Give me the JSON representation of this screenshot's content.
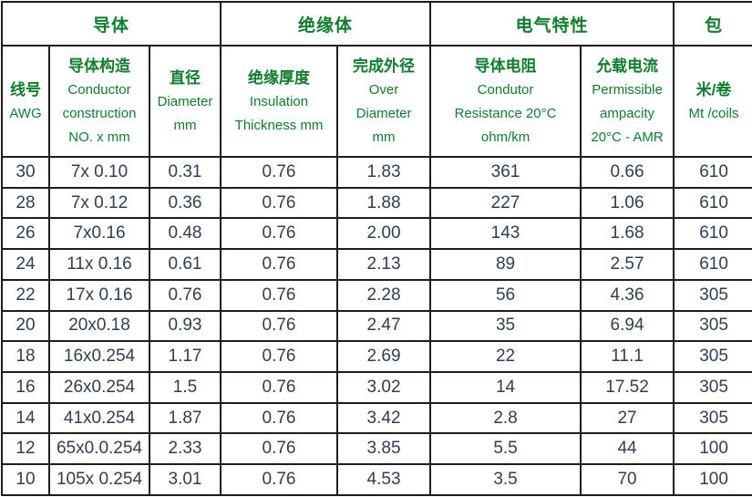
{
  "table": {
    "colors": {
      "header_text": "#0e7e2d",
      "body_text": "#2f3e52",
      "border": "#1d1d1d",
      "background": "#ffffff"
    },
    "group_header": [
      {
        "label": "导体",
        "span": 3
      },
      {
        "label": "绝缘体",
        "span": 2
      },
      {
        "label": "电气特性",
        "span": 2
      },
      {
        "label": "包",
        "span": 1
      }
    ],
    "columns": [
      {
        "key": "awg",
        "cn": "线号",
        "en": [
          "AWG"
        ],
        "width": 52
      },
      {
        "key": "conductor-construction",
        "cn": "导体构造",
        "en": [
          "Conductor",
          "construction",
          "NO. x mm"
        ],
        "width": 110
      },
      {
        "key": "diameter",
        "cn": "直径",
        "en": [
          "Diameter",
          "mm"
        ],
        "width": 78
      },
      {
        "key": "insulation-thickness",
        "cn": "绝缘厚度",
        "en": [
          "Insulation",
          "Thickness mm"
        ],
        "width": 128
      },
      {
        "key": "over-diameter",
        "cn": "完成外径",
        "en": [
          "Over",
          "Diameter",
          "mm"
        ],
        "width": 102
      },
      {
        "key": "conductor-resistance",
        "cn": "导体电阻",
        "en": [
          "Condutor",
          "Resistance 20°C",
          "ohm/km"
        ],
        "width": 165
      },
      {
        "key": "permissible-ampacity",
        "cn": "允载电流",
        "en": [
          "Permissible",
          "ampacity",
          "20°C - AMR"
        ],
        "width": 102
      },
      {
        "key": "mt-coils",
        "cn": "米/卷",
        "en": [
          "Mt /coils"
        ],
        "width": 88
      }
    ],
    "rows": [
      [
        "30",
        "7x 0.10",
        "0.31",
        "0.76",
        "1.83",
        "361",
        "0.66",
        "610"
      ],
      [
        "28",
        "7x 0.12",
        "0.36",
        "0.76",
        "1.88",
        "227",
        "1.06",
        "610"
      ],
      [
        "26",
        "7x0.16",
        "0.48",
        "0.76",
        "2.00",
        "143",
        "1.68",
        "610"
      ],
      [
        "24",
        "11x 0.16",
        "0.61",
        "0.76",
        "2.13",
        "89",
        "2.57",
        "610"
      ],
      [
        "22",
        "17x 0.16",
        "0.76",
        "0.76",
        "2.28",
        "56",
        "4.36",
        "305"
      ],
      [
        "20",
        "20x0.18",
        "0.93",
        "0.76",
        "2.47",
        "35",
        "6.94",
        "305"
      ],
      [
        "18",
        "16x0.254",
        "1.17",
        "0.76",
        "2.69",
        "22",
        "11.1",
        "305"
      ],
      [
        "16",
        "26x0.254",
        "1.5",
        "0.76",
        "3.02",
        "14",
        "17.52",
        "305"
      ],
      [
        "14",
        "41x0.254",
        "1.87",
        "0.76",
        "3.42",
        "2.8",
        "27",
        "305"
      ],
      [
        "12",
        "65x0.0.254",
        "2.33",
        "0.76",
        "3.85",
        "5.5",
        "44",
        "100"
      ],
      [
        "10",
        "105x 0.254",
        "3.01",
        "0.76",
        "4.53",
        "3.5",
        "70",
        "100"
      ]
    ]
  }
}
